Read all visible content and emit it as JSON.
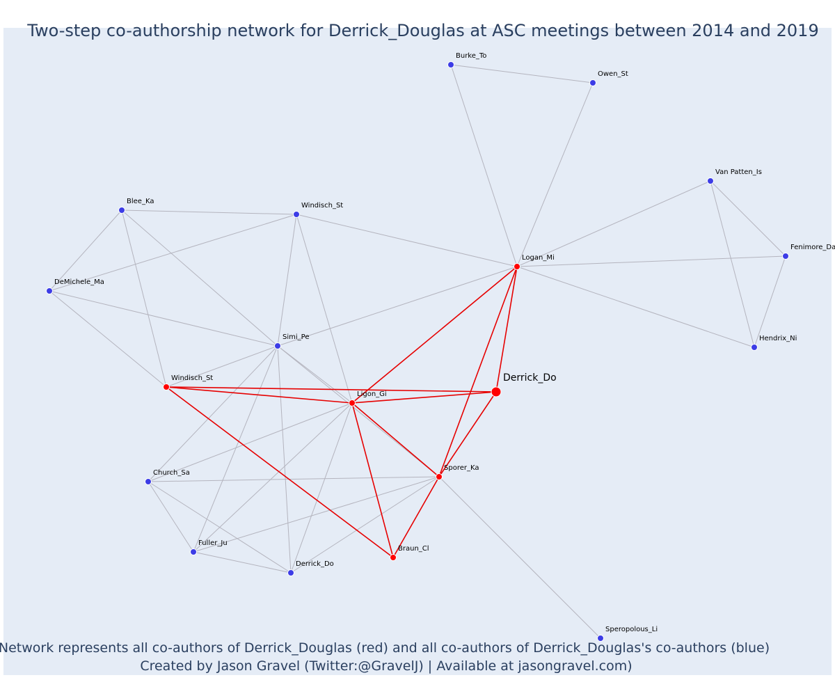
{
  "chart_data": {
    "type": "network",
    "title": "Two-step co-authorship network for Derrick_Douglas at ASC meetings between 2014 and 2019",
    "caption_line1": "Network represents all co-authors of Derrick_Douglas (red) and all co-authors of Derrick_Douglas's co-authors (blue)",
    "caption_line2": "Created by Jason Gravel (Twitter:@GravelJ) | Available at jasongravel.com)",
    "colors": {
      "background": "#e5ecf6",
      "coauthor": "#ff0000",
      "second_step": "#3c3ce6",
      "first_step_edge": "#e60000",
      "second_step_edge": "#b4b4be",
      "text": "#2a3f5f"
    },
    "nodes": [
      {
        "id": "derrick_focal",
        "label": "Derrick_Do",
        "group": "focal"
      },
      {
        "id": "logan",
        "label": "Logan_Mi",
        "group": "coauthor"
      },
      {
        "id": "ligon",
        "label": "Ligon_Gi",
        "group": "coauthor"
      },
      {
        "id": "windisch_r",
        "label": "Windisch_St",
        "group": "coauthor"
      },
      {
        "id": "sporer",
        "label": "Sporer_Ka",
        "group": "coauthor"
      },
      {
        "id": "braun",
        "label": "Braun_Cl",
        "group": "coauthor"
      },
      {
        "id": "burke",
        "label": "Burke_To",
        "group": "second_step"
      },
      {
        "id": "owen",
        "label": "Owen_St",
        "group": "second_step"
      },
      {
        "id": "vanpatten",
        "label": "Van Patten_Is",
        "group": "second_step"
      },
      {
        "id": "fenimore",
        "label": "Fenimore_Da",
        "group": "second_step"
      },
      {
        "id": "hendrix",
        "label": "Hendrix_Ni",
        "group": "second_step"
      },
      {
        "id": "blee",
        "label": "Blee_Ka",
        "group": "second_step"
      },
      {
        "id": "windisch_b",
        "label": "Windisch_St",
        "group": "second_step"
      },
      {
        "id": "demichele",
        "label": "DeMichele_Ma",
        "group": "second_step"
      },
      {
        "id": "simi",
        "label": "Simi_Pe",
        "group": "second_step"
      },
      {
        "id": "church",
        "label": "Church_Sa",
        "group": "second_step"
      },
      {
        "id": "fuller",
        "label": "Fuller_Ju",
        "group": "second_step"
      },
      {
        "id": "derrick_b",
        "label": "Derrick_Do",
        "group": "second_step"
      },
      {
        "id": "speropolous",
        "label": "Speropolous_Li",
        "group": "second_step"
      }
    ],
    "edges": [
      {
        "source": "derrick_focal",
        "target": "logan",
        "type": "first_step"
      },
      {
        "source": "derrick_focal",
        "target": "ligon",
        "type": "first_step"
      },
      {
        "source": "derrick_focal",
        "target": "windisch_r",
        "type": "first_step"
      },
      {
        "source": "derrick_focal",
        "target": "sporer",
        "type": "first_step"
      },
      {
        "source": "logan",
        "target": "ligon",
        "type": "first_step"
      },
      {
        "source": "logan",
        "target": "sporer",
        "type": "first_step"
      },
      {
        "source": "ligon",
        "target": "windisch_r",
        "type": "first_step"
      },
      {
        "source": "ligon",
        "target": "sporer",
        "type": "first_step"
      },
      {
        "source": "ligon",
        "target": "braun",
        "type": "first_step"
      },
      {
        "source": "windisch_r",
        "target": "braun",
        "type": "first_step"
      },
      {
        "source": "sporer",
        "target": "braun",
        "type": "first_step"
      },
      {
        "source": "burke",
        "target": "owen",
        "type": "second_step"
      },
      {
        "source": "burke",
        "target": "logan",
        "type": "second_step"
      },
      {
        "source": "owen",
        "target": "logan",
        "type": "second_step"
      },
      {
        "source": "vanpatten",
        "target": "logan",
        "type": "second_step"
      },
      {
        "source": "vanpatten",
        "target": "fenimore",
        "type": "second_step"
      },
      {
        "source": "vanpatten",
        "target": "hendrix",
        "type": "second_step"
      },
      {
        "source": "fenimore",
        "target": "logan",
        "type": "second_step"
      },
      {
        "source": "fenimore",
        "target": "hendrix",
        "type": "second_step"
      },
      {
        "source": "hendrix",
        "target": "logan",
        "type": "second_step"
      },
      {
        "source": "windisch_b",
        "target": "logan",
        "type": "second_step"
      },
      {
        "source": "simi",
        "target": "logan",
        "type": "second_step"
      },
      {
        "source": "blee",
        "target": "windisch_b",
        "type": "second_step"
      },
      {
        "source": "blee",
        "target": "demichele",
        "type": "second_step"
      },
      {
        "source": "blee",
        "target": "windisch_r",
        "type": "second_step"
      },
      {
        "source": "blee",
        "target": "simi",
        "type": "second_step"
      },
      {
        "source": "demichele",
        "target": "windisch_b",
        "type": "second_step"
      },
      {
        "source": "demichele",
        "target": "simi",
        "type": "second_step"
      },
      {
        "source": "demichele",
        "target": "windisch_r",
        "type": "second_step"
      },
      {
        "source": "windisch_b",
        "target": "simi",
        "type": "second_step"
      },
      {
        "source": "windisch_b",
        "target": "ligon",
        "type": "second_step"
      },
      {
        "source": "simi",
        "target": "windisch_r",
        "type": "second_step"
      },
      {
        "source": "simi",
        "target": "ligon",
        "type": "second_step"
      },
      {
        "source": "simi",
        "target": "sporer",
        "type": "second_step"
      },
      {
        "source": "simi",
        "target": "church",
        "type": "second_step"
      },
      {
        "source": "simi",
        "target": "fuller",
        "type": "second_step"
      },
      {
        "source": "simi",
        "target": "derrick_b",
        "type": "second_step"
      },
      {
        "source": "church",
        "target": "ligon",
        "type": "second_step"
      },
      {
        "source": "church",
        "target": "sporer",
        "type": "second_step"
      },
      {
        "source": "church",
        "target": "fuller",
        "type": "second_step"
      },
      {
        "source": "church",
        "target": "derrick_b",
        "type": "second_step"
      },
      {
        "source": "fuller",
        "target": "ligon",
        "type": "second_step"
      },
      {
        "source": "fuller",
        "target": "sporer",
        "type": "second_step"
      },
      {
        "source": "fuller",
        "target": "derrick_b",
        "type": "second_step"
      },
      {
        "source": "derrick_b",
        "target": "ligon",
        "type": "second_step"
      },
      {
        "source": "derrick_b",
        "target": "sporer",
        "type": "second_step"
      },
      {
        "source": "sporer",
        "target": "speropolous",
        "type": "second_step"
      }
    ]
  }
}
